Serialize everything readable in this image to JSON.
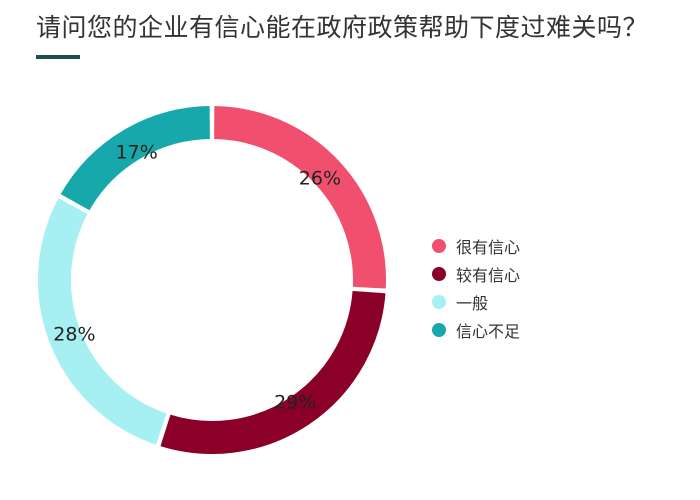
{
  "title": "请问您的企业有信心能在政府政策帮助下度过难关吗？",
  "chart_data": {
    "type": "pie",
    "donut": true,
    "title": "请问您的企业有信心能在政府政策帮助下度过难关吗？",
    "categories": [
      "很有信心",
      "较有信心",
      "一般",
      "信心不足"
    ],
    "values": [
      26,
      29,
      28,
      17
    ],
    "value_labels": [
      "26%",
      "29%",
      "28%",
      "17%"
    ],
    "colors": [
      "#f0506e",
      "#8b0028",
      "#a6f0f3",
      "#16a8aa"
    ],
    "legend_position": "right"
  }
}
